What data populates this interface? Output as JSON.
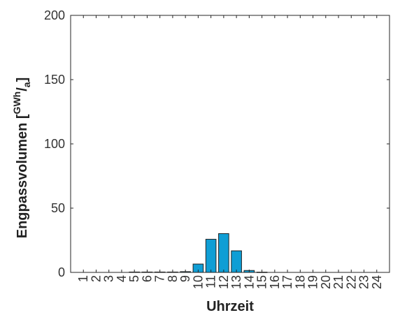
{
  "chart_data": {
    "type": "bar",
    "title": "",
    "xlabel": "Uhrzeit",
    "ylabel": {
      "text": "Engpassvolumen [",
      "unit_numerator": "GWh",
      "slash": "/",
      "unit_denominator": "a",
      "close": "]"
    },
    "ylim": [
      0,
      200
    ],
    "yticks": [
      0,
      50,
      100,
      150,
      200
    ],
    "grid": false,
    "categories": [
      "1",
      "2",
      "3",
      "4",
      "5",
      "6",
      "7",
      "8",
      "9",
      "10",
      "11",
      "12",
      "13",
      "14",
      "15",
      "16",
      "17",
      "18",
      "19",
      "20",
      "21",
      "22",
      "23",
      "24"
    ],
    "values": [
      0,
      0,
      0,
      0,
      0.3,
      0.3,
      0.3,
      0.3,
      0.6,
      6.5,
      25.8,
      30.2,
      16.8,
      1.5,
      0.2,
      0,
      0,
      0,
      0,
      0,
      0,
      0,
      0,
      0
    ],
    "bar_color": "#0f9ed5",
    "bar_edge_color": "#222222"
  }
}
